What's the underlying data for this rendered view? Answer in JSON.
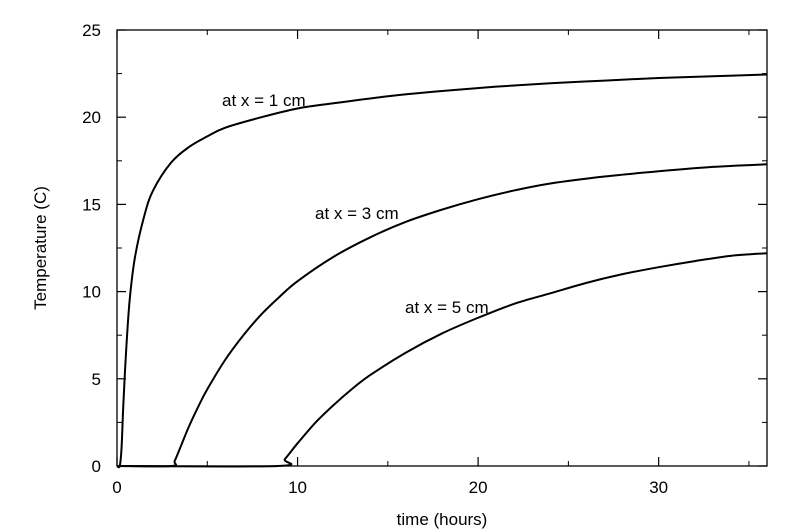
{
  "chart_data": {
    "type": "line",
    "title": "",
    "xlabel": "time (hours)",
    "ylabel": "Temperature (C)",
    "xlim": [
      0,
      36
    ],
    "ylim": [
      0,
      25
    ],
    "xticks": [
      0,
      10,
      20,
      30
    ],
    "yticks": [
      0,
      5,
      10,
      15,
      20,
      25
    ],
    "grid": false,
    "line_color": "#000000",
    "series": [
      {
        "label_text": "at x = 1 cm",
        "points": [
          [
            0.0,
            0
          ],
          [
            0.15,
            0
          ],
          [
            0.25,
            1.0
          ],
          [
            0.35,
            3.5
          ],
          [
            0.5,
            6.5
          ],
          [
            0.7,
            9.5
          ],
          [
            1.0,
            12.0
          ],
          [
            1.5,
            14.3
          ],
          [
            2,
            15.8
          ],
          [
            3,
            17.4
          ],
          [
            4,
            18.3
          ],
          [
            5,
            18.9
          ],
          [
            6,
            19.4
          ],
          [
            8,
            20.0
          ],
          [
            10,
            20.5
          ],
          [
            12,
            20.8
          ],
          [
            15,
            21.2
          ],
          [
            18,
            21.5
          ],
          [
            21,
            21.75
          ],
          [
            24,
            21.95
          ],
          [
            27,
            22.1
          ],
          [
            30,
            22.25
          ],
          [
            33,
            22.35
          ],
          [
            36,
            22.45
          ]
        ]
      },
      {
        "label_text": "at x = 3 cm",
        "points": [
          [
            0,
            0
          ],
          [
            3.0,
            0
          ],
          [
            3.2,
            0.3
          ],
          [
            3.6,
            1.3
          ],
          [
            4,
            2.3
          ],
          [
            4.5,
            3.4
          ],
          [
            5,
            4.4
          ],
          [
            6,
            6.1
          ],
          [
            7,
            7.5
          ],
          [
            8,
            8.7
          ],
          [
            9,
            9.7
          ],
          [
            10,
            10.6
          ],
          [
            12,
            12.0
          ],
          [
            14,
            13.1
          ],
          [
            16,
            14.0
          ],
          [
            18,
            14.7
          ],
          [
            20,
            15.3
          ],
          [
            22,
            15.8
          ],
          [
            24,
            16.2
          ],
          [
            27,
            16.6
          ],
          [
            30,
            16.9
          ],
          [
            33,
            17.15
          ],
          [
            36,
            17.3
          ]
        ]
      },
      {
        "label_text": "at x = 5 cm",
        "points": [
          [
            0,
            0
          ],
          [
            8.9,
            0
          ],
          [
            9.3,
            0.4
          ],
          [
            10,
            1.3
          ],
          [
            11,
            2.5
          ],
          [
            12,
            3.5
          ],
          [
            13,
            4.4
          ],
          [
            14,
            5.2
          ],
          [
            16,
            6.5
          ],
          [
            18,
            7.6
          ],
          [
            20,
            8.5
          ],
          [
            22,
            9.3
          ],
          [
            24,
            9.9
          ],
          [
            26,
            10.5
          ],
          [
            28,
            11.0
          ],
          [
            30,
            11.4
          ],
          [
            32,
            11.75
          ],
          [
            34,
            12.05
          ],
          [
            36,
            12.2
          ]
        ]
      }
    ]
  }
}
